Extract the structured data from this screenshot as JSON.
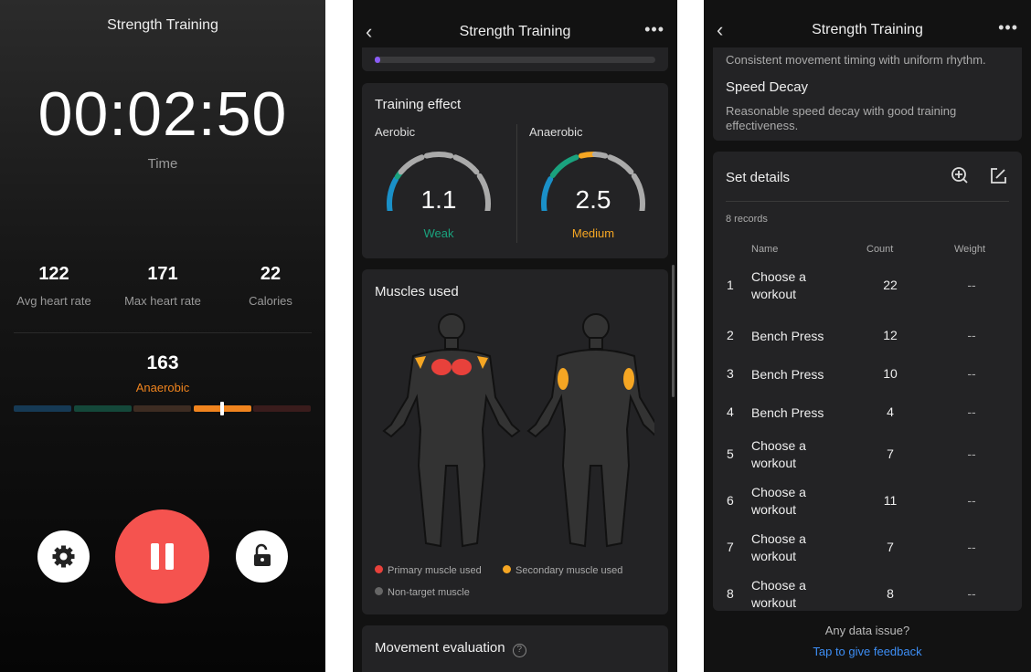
{
  "workout": {
    "title": "Strength Training",
    "time": "00:02:50",
    "time_label": "Time",
    "stats": [
      {
        "value": "122",
        "label": "Avg heart rate"
      },
      {
        "value": "171",
        "label": "Max heart rate"
      },
      {
        "value": "22",
        "label": "Calories"
      }
    ],
    "heart_rate": "163",
    "zone": "Anaerobic",
    "zone_position": 0.7,
    "zone_colors": [
      "#163a55",
      "#14483a",
      "#3d2c22",
      "#f0841e",
      "#3a1c1c"
    ],
    "icons": {
      "settings": "gear-icon",
      "pause": "pause-icon",
      "lock": "unlock-icon"
    },
    "pause_color": "#f5534f"
  },
  "summary": {
    "title": "Strength Training",
    "progress": 0.02,
    "training_effect": {
      "title": "Training effect",
      "aerobic": {
        "label": "Aerobic",
        "value": "1.1",
        "level": "Weak",
        "color": "#1aa27e"
      },
      "anaerobic": {
        "label": "Anaerobic",
        "value": "2.5",
        "level": "Medium",
        "color": "#f5a623"
      }
    },
    "muscles": {
      "title": "Muscles used",
      "legend": [
        "Primary muscle used",
        "Secondary muscle used",
        "Non-target muscle"
      ],
      "colors": [
        "#e8413b",
        "#f5a623",
        "#666666"
      ]
    },
    "movement": {
      "title": "Movement evaluation"
    }
  },
  "details": {
    "title": "Strength Training",
    "rhythm_text": "Consistent movement timing with uniform rhythm.",
    "speed_decay": {
      "title": "Speed Decay",
      "text": "Reasonable speed decay with good training effectiveness."
    },
    "set_details": {
      "title": "Set details",
      "records": "8 records",
      "columns": [
        "Name",
        "Count",
        "Weight"
      ],
      "rows": [
        {
          "n": "1",
          "name": "Choose a workout",
          "count": "22",
          "weight": "--"
        },
        {
          "n": "2",
          "name": "Bench Press",
          "count": "12",
          "weight": "--"
        },
        {
          "n": "3",
          "name": "Bench Press",
          "count": "10",
          "weight": "--"
        },
        {
          "n": "4",
          "name": "Bench Press",
          "count": "4",
          "weight": "--"
        },
        {
          "n": "5",
          "name": "Choose a workout",
          "count": "7",
          "weight": "--"
        },
        {
          "n": "6",
          "name": "Choose a workout",
          "count": "11",
          "weight": "--"
        },
        {
          "n": "7",
          "name": "Choose a workout",
          "count": "7",
          "weight": "--"
        },
        {
          "n": "8",
          "name": "Choose a workout",
          "count": "8",
          "weight": "--"
        }
      ]
    },
    "feedback_q": "Any data issue?",
    "feedback_link": "Tap to give feedback"
  }
}
